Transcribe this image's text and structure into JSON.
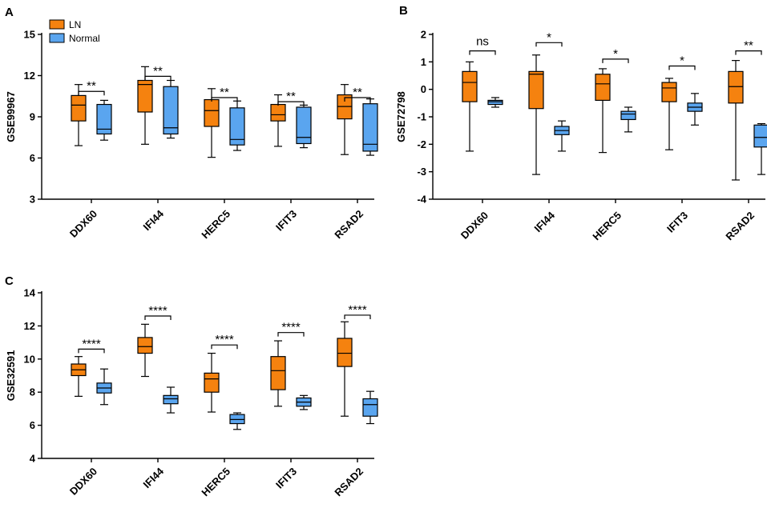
{
  "colors": {
    "ln": "#f5820f",
    "normal": "#5aa5ef",
    "axis": "#000000"
  },
  "legend": {
    "panel": 0,
    "items": [
      {
        "label": "LN",
        "color": "#f5820f"
      },
      {
        "label": "Normal",
        "color": "#5aa5ef"
      }
    ]
  },
  "chart_data": [
    {
      "type": "box",
      "panel_label": "A",
      "ylabel": "GSE99967",
      "ylim": [
        3,
        15
      ],
      "yticks": [
        "3",
        "6",
        "9",
        "12",
        "15"
      ],
      "categories": [
        "DDX60",
        "IFI44",
        "HERC5",
        "IFIT3",
        "RSAD2"
      ],
      "series": [
        {
          "name": "LN",
          "boxes": [
            {
              "min": 6.9,
              "q1": 8.7,
              "median": 9.85,
              "q3": 10.55,
              "max": 11.35
            },
            {
              "min": 7.0,
              "q1": 9.35,
              "median": 11.35,
              "q3": 11.65,
              "max": 12.65
            },
            {
              "min": 6.05,
              "q1": 8.3,
              "median": 9.45,
              "q3": 10.25,
              "max": 11.05
            },
            {
              "min": 6.85,
              "q1": 8.7,
              "median": 9.15,
              "q3": 9.9,
              "max": 10.6
            },
            {
              "min": 6.25,
              "q1": 8.85,
              "median": 9.75,
              "q3": 10.6,
              "max": 11.35
            }
          ]
        },
        {
          "name": "Normal",
          "boxes": [
            {
              "min": 7.3,
              "q1": 7.75,
              "median": 8.1,
              "q3": 9.9,
              "max": 10.2
            },
            {
              "min": 7.45,
              "q1": 7.75,
              "median": 8.2,
              "q3": 11.2,
              "max": 11.65
            },
            {
              "min": 6.55,
              "q1": 6.95,
              "median": 7.35,
              "q3": 9.65,
              "max": 10.15
            },
            {
              "min": 6.75,
              "q1": 7.05,
              "median": 7.5,
              "q3": 9.7,
              "max": 9.85
            },
            {
              "min": 6.2,
              "q1": 6.5,
              "median": 7.0,
              "q3": 9.95,
              "max": 10.3
            }
          ]
        }
      ],
      "significance": [
        {
          "label": "**",
          "y": 10.85
        },
        {
          "label": "**",
          "y": 11.95
        },
        {
          "label": "**",
          "y": 10.4
        },
        {
          "label": "**",
          "y": 10.1
        },
        {
          "label": "**",
          "y": 10.4
        }
      ]
    },
    {
      "type": "box",
      "panel_label": "B",
      "ylabel": "GSE72798",
      "ylim": [
        -4,
        2
      ],
      "yticks": [
        "-4",
        "-3",
        "-2",
        "-1",
        "0",
        "1",
        "2"
      ],
      "categories": [
        "DDX60",
        "IFI44",
        "HERC5",
        "IFIT3",
        "RSAD2"
      ],
      "series": [
        {
          "name": "LN",
          "boxes": [
            {
              "min": -2.25,
              "q1": -0.45,
              "median": 0.25,
              "q3": 0.65,
              "max": 1.0
            },
            {
              "min": -3.1,
              "q1": -0.7,
              "median": 0.55,
              "q3": 0.65,
              "max": 1.25
            },
            {
              "min": -2.3,
              "q1": -0.4,
              "median": 0.2,
              "q3": 0.55,
              "max": 0.75
            },
            {
              "min": -2.2,
              "q1": -0.45,
              "median": 0.05,
              "q3": 0.25,
              "max": 0.4
            },
            {
              "min": -3.3,
              "q1": -0.5,
              "median": 0.1,
              "q3": 0.65,
              "max": 1.05
            }
          ]
        },
        {
          "name": "Normal",
          "boxes": [
            {
              "min": -0.65,
              "q1": -0.55,
              "median": -0.45,
              "q3": -0.4,
              "max": -0.3
            },
            {
              "min": -2.25,
              "q1": -1.65,
              "median": -1.5,
              "q3": -1.35,
              "max": -1.15
            },
            {
              "min": -1.55,
              "q1": -1.1,
              "median": -0.9,
              "q3": -0.8,
              "max": -0.65
            },
            {
              "min": -1.3,
              "q1": -0.8,
              "median": -0.65,
              "q3": -0.5,
              "max": -0.15
            },
            {
              "min": -3.1,
              "q1": -2.1,
              "median": -1.75,
              "q3": -1.3,
              "max": -1.25
            }
          ]
        }
      ],
      "significance": [
        {
          "label": "ns",
          "y": 1.4
        },
        {
          "label": "*",
          "y": 1.7
        },
        {
          "label": "*",
          "y": 1.1
        },
        {
          "label": "*",
          "y": 0.85
        },
        {
          "label": "**",
          "y": 1.4
        }
      ]
    },
    {
      "type": "box",
      "panel_label": "C",
      "ylabel": "GSE32591",
      "ylim": [
        4,
        14
      ],
      "yticks": [
        "4",
        "6",
        "8",
        "10",
        "12",
        "14"
      ],
      "categories": [
        "DDX60",
        "IFI44",
        "HERC5",
        "IFIT3",
        "RSAD2"
      ],
      "series": [
        {
          "name": "LN",
          "boxes": [
            {
              "min": 7.75,
              "q1": 9.0,
              "median": 9.35,
              "q3": 9.7,
              "max": 10.15
            },
            {
              "min": 8.95,
              "q1": 10.35,
              "median": 10.75,
              "q3": 11.3,
              "max": 12.1
            },
            {
              "min": 6.8,
              "q1": 8.0,
              "median": 8.8,
              "q3": 9.15,
              "max": 10.35
            },
            {
              "min": 7.15,
              "q1": 8.15,
              "median": 9.3,
              "q3": 10.15,
              "max": 11.1
            },
            {
              "min": 6.55,
              "q1": 9.55,
              "median": 10.35,
              "q3": 11.25,
              "max": 12.25
            }
          ]
        },
        {
          "name": "Normal",
          "boxes": [
            {
              "min": 7.25,
              "q1": 7.95,
              "median": 8.25,
              "q3": 8.55,
              "max": 9.4
            },
            {
              "min": 6.75,
              "q1": 7.3,
              "median": 7.6,
              "q3": 7.8,
              "max": 8.3
            },
            {
              "min": 5.75,
              "q1": 6.1,
              "median": 6.35,
              "q3": 6.65,
              "max": 6.75
            },
            {
              "min": 6.95,
              "q1": 7.15,
              "median": 7.4,
              "q3": 7.65,
              "max": 7.8
            },
            {
              "min": 6.1,
              "q1": 6.55,
              "median": 7.25,
              "q3": 7.6,
              "max": 8.05
            }
          ]
        }
      ],
      "significance": [
        {
          "label": "****",
          "y": 10.6
        },
        {
          "label": "****",
          "y": 12.6
        },
        {
          "label": "****",
          "y": 10.85
        },
        {
          "label": "****",
          "y": 11.6
        },
        {
          "label": "****",
          "y": 12.65
        }
      ]
    }
  ]
}
